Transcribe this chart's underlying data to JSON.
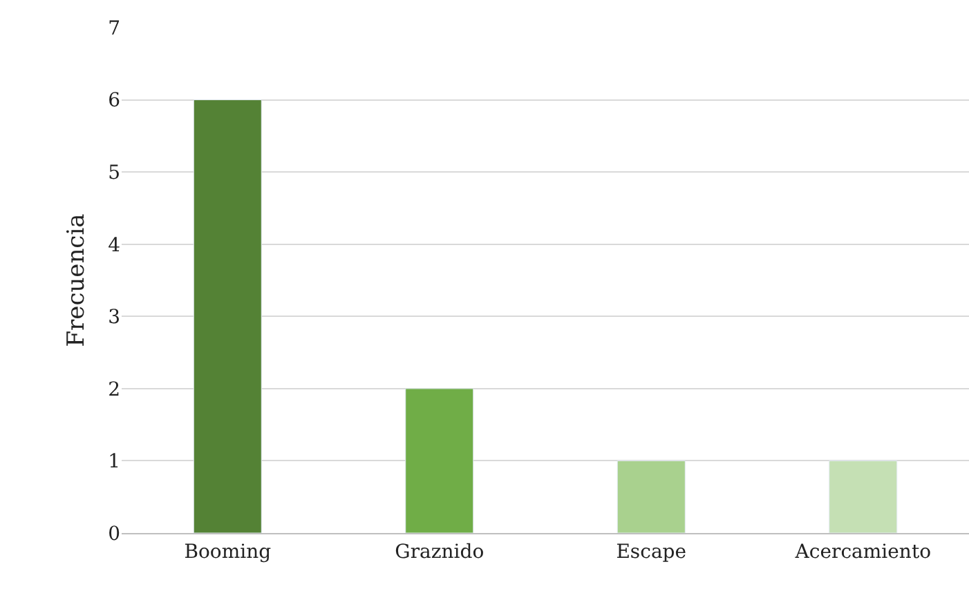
{
  "chart_data": {
    "type": "bar",
    "ylabel": "Frecuencia",
    "categories": [
      "Booming",
      "Graznido",
      "Escape",
      "Acercamiento"
    ],
    "values": [
      6,
      2,
      1,
      1
    ],
    "colors": [
      "#548235",
      "#70ad47",
      "#a9d18e",
      "#c5e0b4"
    ],
    "ylim": [
      0,
      7
    ],
    "yticks": [
      0,
      1,
      2,
      3,
      4,
      5,
      6,
      7
    ],
    "grid": "y"
  }
}
